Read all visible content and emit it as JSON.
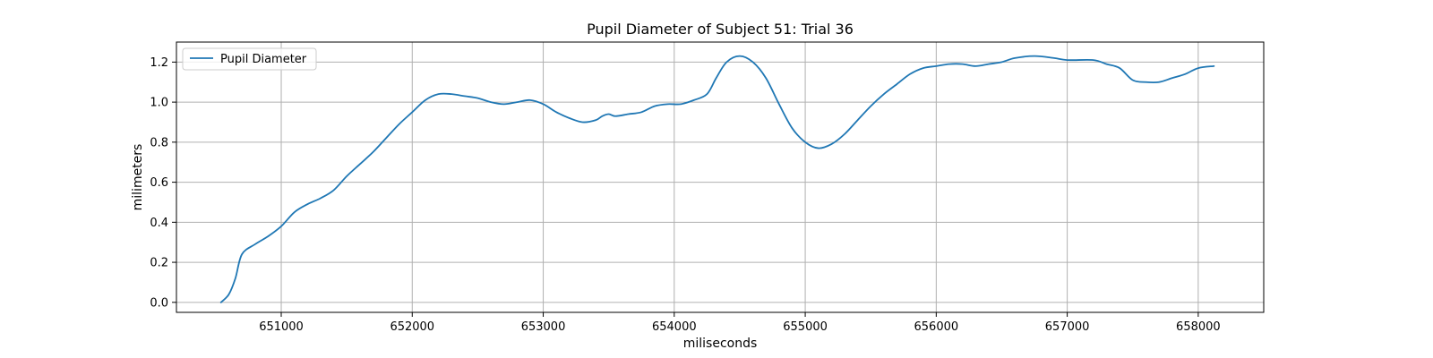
{
  "chart_data": {
    "type": "line",
    "title": "Pupil Diameter of Subject 51: Trial 36",
    "xlabel": "miliseconds",
    "ylabel": "milimeters",
    "xlim": [
      650200,
      658500
    ],
    "ylim": [
      -0.05,
      1.3
    ],
    "grid": true,
    "legend_position": "top-left",
    "x_ticks": [
      651000,
      652000,
      653000,
      654000,
      655000,
      656000,
      657000,
      658000
    ],
    "x_tick_labels": [
      "651000",
      "652000",
      "653000",
      "654000",
      "655000",
      "656000",
      "657000",
      "658000"
    ],
    "y_ticks": [
      0.0,
      0.2,
      0.4,
      0.6,
      0.8,
      1.0,
      1.2
    ],
    "y_tick_labels": [
      "0.0",
      "0.2",
      "0.4",
      "0.6",
      "0.8",
      "1.0",
      "1.2"
    ],
    "series": [
      {
        "name": "Pupil Diameter",
        "color": "#1f77b4",
        "points": [
          [
            650540,
            0.0
          ],
          [
            650600,
            0.04
          ],
          [
            650650,
            0.12
          ],
          [
            650700,
            0.24
          ],
          [
            650800,
            0.29
          ],
          [
            650900,
            0.33
          ],
          [
            651000,
            0.38
          ],
          [
            651100,
            0.45
          ],
          [
            651200,
            0.49
          ],
          [
            651300,
            0.52
          ],
          [
            651400,
            0.56
          ],
          [
            651500,
            0.63
          ],
          [
            651600,
            0.69
          ],
          [
            651700,
            0.75
          ],
          [
            651800,
            0.82
          ],
          [
            651900,
            0.89
          ],
          [
            652000,
            0.95
          ],
          [
            652100,
            1.01
          ],
          [
            652200,
            1.04
          ],
          [
            652300,
            1.04
          ],
          [
            652400,
            1.03
          ],
          [
            652500,
            1.02
          ],
          [
            652600,
            1.0
          ],
          [
            652700,
            0.99
          ],
          [
            652800,
            1.0
          ],
          [
            652900,
            1.01
          ],
          [
            653000,
            0.99
          ],
          [
            653100,
            0.95
          ],
          [
            653200,
            0.92
          ],
          [
            653300,
            0.9
          ],
          [
            653400,
            0.91
          ],
          [
            653450,
            0.93
          ],
          [
            653500,
            0.94
          ],
          [
            653550,
            0.93
          ],
          [
            653650,
            0.94
          ],
          [
            653750,
            0.95
          ],
          [
            653850,
            0.98
          ],
          [
            653950,
            0.99
          ],
          [
            654050,
            0.99
          ],
          [
            654150,
            1.01
          ],
          [
            654250,
            1.04
          ],
          [
            654320,
            1.12
          ],
          [
            654400,
            1.2
          ],
          [
            654500,
            1.23
          ],
          [
            654600,
            1.2
          ],
          [
            654700,
            1.12
          ],
          [
            654800,
            0.99
          ],
          [
            654900,
            0.87
          ],
          [
            655000,
            0.8
          ],
          [
            655100,
            0.77
          ],
          [
            655200,
            0.79
          ],
          [
            655300,
            0.84
          ],
          [
            655400,
            0.91
          ],
          [
            655500,
            0.98
          ],
          [
            655600,
            1.04
          ],
          [
            655700,
            1.09
          ],
          [
            655800,
            1.14
          ],
          [
            655900,
            1.17
          ],
          [
            656000,
            1.18
          ],
          [
            656100,
            1.19
          ],
          [
            656200,
            1.19
          ],
          [
            656300,
            1.18
          ],
          [
            656400,
            1.19
          ],
          [
            656500,
            1.2
          ],
          [
            656600,
            1.22
          ],
          [
            656750,
            1.23
          ],
          [
            656900,
            1.22
          ],
          [
            657000,
            1.21
          ],
          [
            657200,
            1.21
          ],
          [
            657300,
            1.19
          ],
          [
            657400,
            1.17
          ],
          [
            657500,
            1.11
          ],
          [
            657600,
            1.1
          ],
          [
            657700,
            1.1
          ],
          [
            657800,
            1.12
          ],
          [
            657900,
            1.14
          ],
          [
            658000,
            1.17
          ],
          [
            658120,
            1.18
          ]
        ]
      }
    ]
  }
}
